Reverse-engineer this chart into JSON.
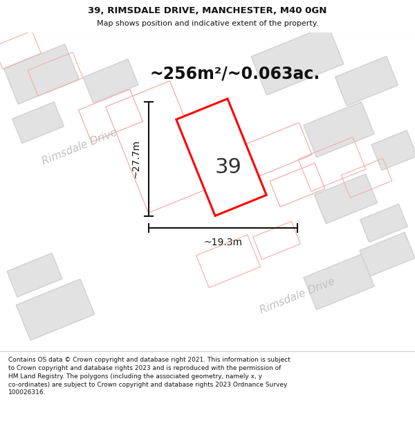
{
  "title": "39, RIMSDALE DRIVE, MANCHESTER, M40 0GN",
  "subtitle": "Map shows position and indicative extent of the property.",
  "area_text": "~256m²/~0.063ac.",
  "width_label": "~19.3m",
  "height_label": "~27.7m",
  "street_label1": "Rimsdale Drive",
  "street_label2": "Rimsdale Drive",
  "number_label": "39",
  "footer_line1": "Contains OS data © Crown copyright and database right 2021. This information is subject",
  "footer_line2": "to Crown copyright and database rights 2023 and is reproduced with the permission of",
  "footer_line3": "HM Land Registry. The polygons (including the associated geometry, namely x, y",
  "footer_line4": "co-ordinates) are subject to Crown copyright and database rights 2023 Ordnance Survey",
  "footer_line5": "100026316.",
  "bg_color": "#f0f0f0",
  "road_color": "#ffffff",
  "building_fill": "#e2e2e2",
  "building_stroke": "#d0d0d0",
  "pink": "#f5aaaa",
  "highlight_fill": "#ffffff",
  "highlight_stroke": "#ff0000",
  "road_label_color": "#c0c0c0",
  "dim_line_color": "#111111",
  "footer_color": "#111111",
  "title_color": "#111111",
  "separator_color": "#cccccc"
}
